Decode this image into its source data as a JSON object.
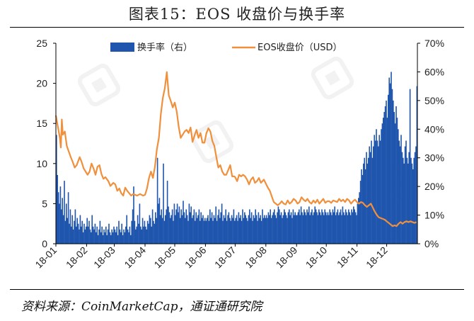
{
  "header": {
    "title": "图表15：EOS 收盘价与换手率"
  },
  "footer": {
    "source": "资料来源：CoinMarketCap，通证通研究院"
  },
  "colors": {
    "bar": "#1f55ad",
    "line": "#f0903c",
    "axis": "#000000"
  },
  "chart_data": {
    "type": "bar+line",
    "title": "图表15：EOS 收盘价与换手率",
    "categories": [
      "18-01",
      "18-02",
      "18-03",
      "18-04",
      "18-05",
      "18-06",
      "18-07",
      "18-08",
      "18-09",
      "18-10",
      "18-11",
      "18-12"
    ],
    "x_tick_labels": [
      "18-01",
      "18-02",
      "18-03",
      "18-04",
      "18-05",
      "18-06",
      "18-07",
      "18-08",
      "18-09",
      "18-10",
      "18-11",
      "18-12"
    ],
    "y_left": {
      "min": 0,
      "max": 25,
      "ticks": [
        "0",
        "5",
        "10",
        "15",
        "20",
        "25"
      ]
    },
    "y_right": {
      "min": 0,
      "max": 70,
      "ticks": [
        "0%",
        "10%",
        "20%",
        "30%",
        "40%",
        "50%",
        "60%",
        "70%"
      ]
    },
    "legend": {
      "placement": "top"
    },
    "series": [
      {
        "name": "换手率（右）",
        "type": "bar",
        "axis": "right",
        "unit": "%",
        "monthly_values": [
          [
            38,
            24,
            18,
            14,
            20,
            12,
            16,
            10,
            22,
            8,
            14,
            9,
            18,
            7,
            12,
            6,
            10,
            5,
            8,
            12,
            6,
            9,
            7,
            5,
            10,
            6,
            8,
            4,
            7,
            5,
            6
          ],
          [
            9,
            6,
            8,
            5,
            4,
            10,
            6,
            5,
            7,
            4,
            6,
            3,
            5,
            8,
            4,
            6,
            3,
            5,
            4,
            6,
            3,
            5,
            7,
            4,
            3,
            5,
            4,
            6
          ],
          [
            5,
            4,
            6,
            3,
            8,
            5,
            4,
            7,
            3,
            5,
            4,
            6,
            10,
            5,
            4,
            6,
            3,
            8,
            12,
            20,
            8,
            5,
            6,
            10,
            7,
            14,
            6,
            5,
            9,
            6,
            8
          ],
          [
            6,
            5,
            8,
            7,
            10,
            9,
            6,
            12,
            8,
            7,
            11,
            9,
            30,
            14,
            16,
            10,
            12,
            9,
            28,
            8,
            10,
            12,
            22,
            13,
            11,
            9,
            10,
            12,
            8,
            14
          ],
          [
            10,
            12,
            14,
            11,
            13,
            9,
            12,
            10,
            15,
            11,
            9,
            12,
            10,
            8,
            14,
            11,
            13,
            9,
            10,
            12,
            8,
            11,
            9,
            10,
            12,
            8,
            11,
            9,
            10,
            8,
            9
          ],
          [
            8,
            9,
            10,
            8,
            12,
            9,
            11,
            8,
            10,
            9,
            13,
            8,
            10,
            12,
            9,
            11,
            14,
            8,
            10,
            9,
            12,
            8,
            10,
            11,
            9,
            8,
            10,
            9,
            12,
            8
          ],
          [
            9,
            10,
            8,
            11,
            9,
            10,
            8,
            12,
            9,
            11,
            10,
            9,
            8,
            10,
            12,
            9,
            11,
            8,
            10,
            9,
            12,
            10,
            8,
            11,
            9,
            10,
            8,
            12,
            9,
            10,
            9
          ],
          [
            10,
            9,
            11,
            10,
            12,
            9,
            10,
            11,
            12,
            10,
            9,
            11,
            13,
            12,
            10,
            11,
            9,
            10,
            12,
            11,
            10,
            9,
            11,
            12,
            10,
            11,
            9,
            12,
            10,
            11,
            10
          ],
          [
            10,
            11,
            12,
            10,
            13,
            11,
            10,
            12,
            11,
            10,
            12,
            11,
            13,
            10,
            11,
            12,
            10,
            11,
            13,
            12,
            11,
            10,
            12,
            11,
            10,
            12,
            11,
            10,
            12,
            11
          ],
          [
            10,
            11,
            10,
            12,
            11,
            10,
            12,
            11,
            13,
            10,
            11,
            12,
            10,
            11,
            12,
            10,
            13,
            11,
            10,
            12,
            11,
            10,
            12,
            11,
            10,
            12,
            11,
            13,
            12,
            11,
            10
          ],
          [
            14,
            16,
            18,
            22,
            26,
            24,
            28,
            30,
            26,
            32,
            28,
            30,
            34,
            32,
            36,
            30,
            34,
            38,
            36,
            40,
            36,
            34,
            38,
            36,
            40,
            42,
            44,
            46,
            48,
            50
          ],
          [
            44,
            52,
            58,
            56,
            60,
            54,
            50,
            46,
            42,
            48,
            44,
            40,
            36,
            34,
            38,
            32,
            30,
            28,
            34,
            36,
            30,
            28,
            32,
            54,
            30,
            28,
            26,
            30,
            32,
            34,
            55
          ]
        ]
      },
      {
        "name": "EOS收盘价（USD）",
        "type": "line",
        "axis": "left",
        "unit": "USD",
        "knots": [
          [
            0,
            16.0
          ],
          [
            2,
            14.6
          ],
          [
            4,
            13.2
          ],
          [
            5,
            12.0
          ],
          [
            6,
            15.5
          ],
          [
            7,
            13.6
          ],
          [
            9,
            14.0
          ],
          [
            11,
            12.2
          ],
          [
            13,
            11.5
          ],
          [
            15,
            10.8
          ],
          [
            17,
            10.2
          ],
          [
            19,
            9.5
          ],
          [
            21,
            9.8
          ],
          [
            24,
            10.8
          ],
          [
            26,
            10.2
          ],
          [
            28,
            9.4
          ],
          [
            30,
            9.0
          ],
          [
            32,
            8.6
          ],
          [
            34,
            9.0
          ],
          [
            36,
            10.0
          ],
          [
            38,
            9.4
          ],
          [
            40,
            8.6
          ],
          [
            42,
            9.6
          ],
          [
            44,
            9.8
          ],
          [
            46,
            8.7
          ],
          [
            48,
            8.1
          ],
          [
            50,
            8.3
          ],
          [
            53,
            7.8
          ],
          [
            55,
            7.2
          ],
          [
            58,
            7.6
          ],
          [
            60,
            7.4
          ],
          [
            62,
            6.6
          ],
          [
            64,
            6.9
          ],
          [
            66,
            6.3
          ],
          [
            68,
            6.0
          ],
          [
            70,
            7.0
          ],
          [
            72,
            6.6
          ],
          [
            74,
            6.3
          ],
          [
            76,
            6.0
          ],
          [
            78,
            6.2
          ],
          [
            80,
            6.1
          ],
          [
            82,
            6.0
          ],
          [
            85,
            6.2
          ],
          [
            88,
            6.0
          ],
          [
            90,
            6.1
          ],
          [
            92,
            6.9
          ],
          [
            94,
            8.2
          ],
          [
            96,
            9.0
          ],
          [
            98,
            8.2
          ],
          [
            100,
            9.6
          ],
          [
            102,
            11.8
          ],
          [
            104,
            13.2
          ],
          [
            106,
            16.2
          ],
          [
            108,
            18.2
          ],
          [
            110,
            19.4
          ],
          [
            112,
            21.4
          ],
          [
            114,
            18.5
          ],
          [
            116,
            17.8
          ],
          [
            118,
            17.0
          ],
          [
            120,
            17.6
          ],
          [
            122,
            16.5
          ],
          [
            124,
            14.6
          ],
          [
            126,
            13.2
          ],
          [
            128,
            13.6
          ],
          [
            130,
            14.0
          ],
          [
            132,
            14.2
          ],
          [
            134,
            13.8
          ],
          [
            136,
            14.5
          ],
          [
            138,
            12.7
          ],
          [
            140,
            13.5
          ],
          [
            142,
            14.2
          ],
          [
            144,
            13.2
          ],
          [
            146,
            13.8
          ],
          [
            148,
            12.6
          ],
          [
            150,
            12.6
          ],
          [
            152,
            13.8
          ],
          [
            154,
            14.4
          ],
          [
            156,
            14.0
          ],
          [
            158,
            12.8
          ],
          [
            160,
            12.2
          ],
          [
            162,
            10.8
          ],
          [
            164,
            9.5
          ],
          [
            166,
            9.8
          ],
          [
            168,
            9.0
          ],
          [
            170,
            8.6
          ],
          [
            172,
            8.6
          ],
          [
            174,
            9.2
          ],
          [
            176,
            9.8
          ],
          [
            178,
            8.4
          ],
          [
            180,
            8.4
          ],
          [
            181,
            8.3
          ],
          [
            183,
            7.8
          ],
          [
            185,
            8.6
          ],
          [
            187,
            8.4
          ],
          [
            189,
            8.6
          ],
          [
            191,
            8.4
          ],
          [
            193,
            8.0
          ],
          [
            195,
            7.4
          ],
          [
            197,
            8.0
          ],
          [
            199,
            8.3
          ],
          [
            201,
            7.6
          ],
          [
            203,
            7.8
          ],
          [
            205,
            8.2
          ],
          [
            207,
            7.6
          ],
          [
            210,
            8.0
          ],
          [
            212,
            7.5
          ],
          [
            214,
            7.0
          ],
          [
            216,
            6.6
          ],
          [
            218,
            5.9
          ],
          [
            220,
            5.2
          ],
          [
            222,
            5.0
          ],
          [
            224,
            4.8
          ],
          [
            226,
            5.0
          ],
          [
            228,
            5.3
          ],
          [
            230,
            5.0
          ],
          [
            232,
            4.9
          ],
          [
            234,
            5.4
          ],
          [
            236,
            5.0
          ],
          [
            238,
            5.2
          ],
          [
            240,
            5.6
          ],
          [
            242,
            5.4
          ],
          [
            244,
            5.0
          ],
          [
            246,
            5.2
          ],
          [
            248,
            5.8
          ],
          [
            250,
            5.5
          ],
          [
            252,
            5.3
          ],
          [
            254,
            5.6
          ],
          [
            256,
            5.2
          ],
          [
            258,
            5.0
          ],
          [
            260,
            5.4
          ],
          [
            262,
            5.1
          ],
          [
            264,
            5.5
          ],
          [
            266,
            5.0
          ],
          [
            268,
            5.3
          ],
          [
            270,
            5.6
          ],
          [
            272,
            5.1
          ],
          [
            274,
            5.3
          ],
          [
            276,
            5.3
          ],
          [
            278,
            5.1
          ],
          [
            280,
            5.4
          ],
          [
            282,
            5.3
          ],
          [
            284,
            5.2
          ],
          [
            286,
            5.6
          ],
          [
            288,
            5.3
          ],
          [
            290,
            5.5
          ],
          [
            292,
            5.2
          ],
          [
            294,
            5.6
          ],
          [
            296,
            5.4
          ],
          [
            298,
            5.0
          ],
          [
            300,
            5.3
          ],
          [
            302,
            5.5
          ],
          [
            304,
            5.2
          ],
          [
            306,
            5.0
          ],
          [
            308,
            5.2
          ],
          [
            310,
            5.1
          ],
          [
            312,
            4.8
          ],
          [
            314,
            4.6
          ],
          [
            316,
            4.8
          ],
          [
            318,
            5.0
          ],
          [
            320,
            4.5
          ],
          [
            322,
            4.0
          ],
          [
            324,
            3.6
          ],
          [
            326,
            3.3
          ],
          [
            328,
            3.2
          ],
          [
            330,
            3.1
          ],
          [
            332,
            3.0
          ],
          [
            334,
            2.8
          ],
          [
            336,
            2.6
          ],
          [
            338,
            2.4
          ],
          [
            340,
            2.2
          ],
          [
            342,
            2.3
          ],
          [
            344,
            2.2
          ],
          [
            346,
            2.5
          ],
          [
            348,
            2.7
          ],
          [
            350,
            2.5
          ],
          [
            352,
            2.7
          ],
          [
            354,
            2.8
          ],
          [
            356,
            2.7
          ],
          [
            358,
            2.8
          ],
          [
            360,
            2.7
          ],
          [
            362,
            2.6
          ],
          [
            364,
            2.7
          ]
        ]
      }
    ]
  }
}
